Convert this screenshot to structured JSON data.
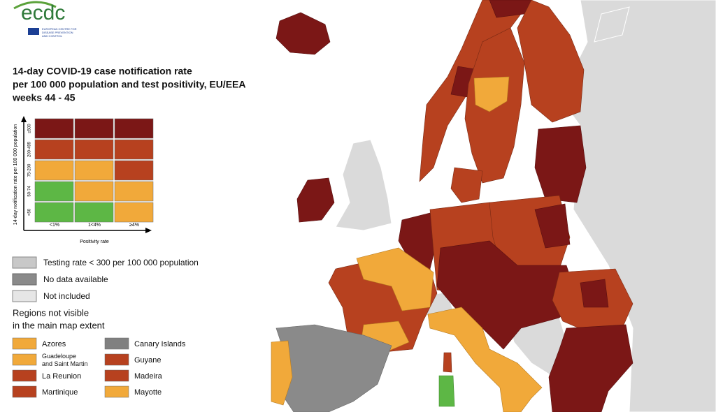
{
  "logo": {
    "name": "ecdc",
    "subtitle_lines": [
      "EUROPEAN CENTRE FOR",
      "DISEASE PREVENTION",
      "AND CONTROL"
    ]
  },
  "title_lines": [
    "14-day COVID-19 case notification rate",
    "per 100 000 population and test positivity, EU/EEA",
    "weeks 44 - 45"
  ],
  "matrix": {
    "y_axis_label": "14-day notification rate per 100 000 population",
    "row_labels": [
      "≥500",
      "200-499",
      "75-200",
      "50-74",
      "<50"
    ],
    "column_labels": [
      "<1%",
      "1<4%",
      "≥4%"
    ],
    "x_axis_label": "Positivity rate"
  },
  "legend": [
    "Testing rate < 300 per 100 000 population",
    "No data available",
    "Not included"
  ],
  "regions_heading_lines": [
    "Regions not visible",
    "in the main map extent"
  ],
  "regions": [
    "Azores",
    "Canary Islands",
    "Guadeloupe and Saint Martin",
    "Guyane",
    "La Reunion",
    "Madeira",
    "Martinique",
    "Mayotte"
  ]
}
